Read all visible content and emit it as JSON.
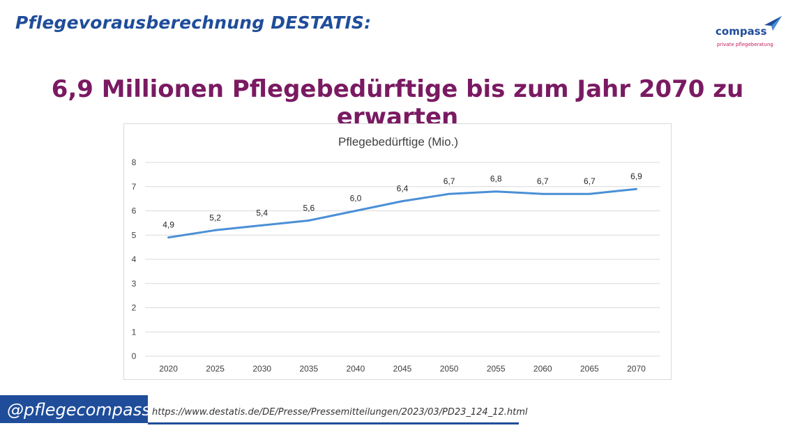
{
  "header": {
    "title": "Pflegevorausberechnung DESTATIS:"
  },
  "logo": {
    "word": "compass",
    "tagline": "private pflegeberatung"
  },
  "headline": "6,9 Millionen Pflegebedürftige bis zum Jahr 2070 zu erwarten",
  "footer": {
    "handle": "@pflegecompass",
    "source_url": "https://www.destatis.de/DE/Presse/Pressemitteilungen/2023/03/PD23_124_12.html"
  },
  "colors": {
    "brand_blue": "#1f4d9a",
    "headline_purple": "#7a1a62",
    "line": "#4a8fd6",
    "logo_accent": "#c2185b"
  },
  "chart_data": {
    "type": "line",
    "title": "Pflegebedürftige (Mio.)",
    "categories": [
      "2020",
      "2025",
      "2030",
      "2035",
      "2040",
      "2045",
      "2050",
      "2055",
      "2060",
      "2065",
      "2070"
    ],
    "series": [
      {
        "values": [
          4.9,
          5.2,
          5.4,
          5.6,
          6.0,
          6.4,
          6.7,
          6.8,
          6.7,
          6.7,
          6.9
        ]
      }
    ],
    "data_labels": [
      "4,9",
      "5,2",
      "5,4",
      "5,6",
      "6,0",
      "6,4",
      "6,7",
      "6,8",
      "6,7",
      "6,7",
      "6,9"
    ],
    "ylim": [
      0,
      8
    ],
    "yticks": [
      0,
      1,
      2,
      3,
      4,
      5,
      6,
      7,
      8
    ],
    "grid": true,
    "legend": "none"
  }
}
